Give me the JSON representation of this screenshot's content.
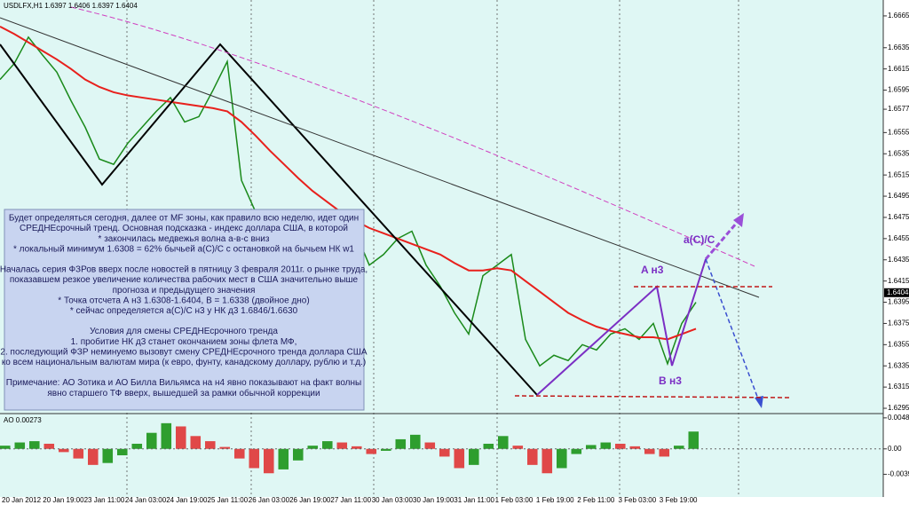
{
  "chart_data": [
    {
      "type": "line",
      "title": "USDLFX,H1  1.6397 1.6406 1.6397 1.6404",
      "x_labels": [
        "20 Jan 2012",
        "20 Jan 19:00",
        "23 Jan 11:00",
        "24 Jan 03:00",
        "24 Jan 19:00",
        "25 Jan 11:00",
        "26 Jan 03:00",
        "26 Jan 19:00",
        "27 Jan 11:00",
        "30 Jan 03:00",
        "30 Jan 19:00",
        "31 Jan 11:00",
        "1 Feb 03:00",
        "1 Feb 19:00",
        "2 Feb 11:00",
        "3 Feb 03:00",
        "3 Feb 19:00"
      ],
      "series": [
        {
          "name": "close",
          "color": "#1a8a1a",
          "values": [
            1.6605,
            1.662,
            1.6645,
            1.6628,
            1.6612,
            1.6585,
            1.656,
            1.653,
            1.6525,
            1.6545,
            1.656,
            1.6575,
            1.6588,
            1.6565,
            1.657,
            1.6595,
            1.6622,
            1.651,
            1.648,
            1.647,
            1.6455,
            1.6445,
            1.645,
            1.644,
            1.645,
            1.6462,
            1.643,
            1.644,
            1.6455,
            1.6462,
            1.643,
            1.641,
            1.6385,
            1.6365,
            1.642,
            1.643,
            1.644,
            1.636,
            1.6335,
            1.6345,
            1.634,
            1.6355,
            1.635,
            1.6365,
            1.637,
            1.636,
            1.6375,
            1.6337,
            1.6375,
            1.6395
          ]
        },
        {
          "name": "ma",
          "color": "#e8201c",
          "values": [
            1.6655,
            1.6648,
            1.664,
            1.6632,
            1.6624,
            1.6615,
            1.6605,
            1.6598,
            1.6593,
            1.659,
            1.6588,
            1.6586,
            1.6584,
            1.6582,
            1.658,
            1.6578,
            1.6575,
            1.6565,
            1.6552,
            1.6538,
            1.6525,
            1.6512,
            1.65,
            1.649,
            1.648,
            1.6472,
            1.6465,
            1.646,
            1.6455,
            1.645,
            1.6445,
            1.644,
            1.6432,
            1.6425,
            1.6425,
            1.6427,
            1.6425,
            1.6415,
            1.6405,
            1.6395,
            1.6385,
            1.6378,
            1.6372,
            1.6368,
            1.6365,
            1.6362,
            1.6362,
            1.636,
            1.6365,
            1.637
          ]
        }
      ],
      "ylim": [
        1.629,
        1.668
      ],
      "yticks": [
        1.6665,
        1.6635,
        1.6615,
        1.6595,
        1.6577,
        1.6555,
        1.6535,
        1.6515,
        1.6495,
        1.6475,
        1.6455,
        1.6435,
        1.6415,
        1.6395,
        1.6375,
        1.6355,
        1.6335,
        1.6315,
        1.6295
      ],
      "current": 1.6404,
      "wave_labels": [
        "A н3",
        "B н3",
        "a(C)/C"
      ],
      "annotations": [
        [
          "Будет определяться сегодня, далее от МF зоны, как правило всю неделю, идет один",
          "СРЕДНЕсрочный тренд. Основная подсказка - индекс доллара США, в которой",
          "* закончилась медвежья волна а-в-с вниз",
          "* локальный минимум 1.6308 = 62% бычьей а(С)/С с остановкой на бычьем НК w1"
        ],
        [
          "Началась серия ФЗРов вверх после новостей в пятницу 3 февраля 2011г. о рынке труда,",
          "показавшем резкое увеличение количества рабочих мест в США значительно выше",
          "прогноза и предыдущего значения",
          "* Точка отсчета А н3 1.6308-1.6404, В = 1.6338 (двойное дно)",
          "* сейчас определяется а(С)/С н3 у НК д3 1.6846/1.6630"
        ],
        [
          "Условия для смены СРЕДНЕсрочного тренда",
          "1. пробитие НК д3 станет окончанием зоны флета МФ,",
          "2. последующий ФЗР неминуемо вызовут смену СРЕДНЕсрочного тренда доллара США",
          "ко всем национальным валютам мира (к евро, фунту, канадскому доллару, рублю и т.д.)"
        ],
        [
          "Примечание: АО Зотика и АО Билла Вильямса на н4 явно показывают на факт волны",
          "явно старшего ТФ вверх, вышедшей за рамки обычной коррекции"
        ]
      ]
    },
    {
      "type": "bar",
      "title": "AO 0.00273",
      "up_color": "#2e9e2e",
      "down_color": "#e04848",
      "values": [
        0.0005,
        0.001,
        0.0012,
        0.0008,
        -0.0005,
        -0.0015,
        -0.0025,
        -0.0022,
        -0.001,
        0.0008,
        0.0025,
        0.004,
        0.0035,
        0.002,
        0.0012,
        0.0003,
        -0.0015,
        -0.003,
        -0.0038,
        -0.0032,
        -0.0018,
        0.0005,
        0.0012,
        0.001,
        0.0004,
        -0.0008,
        -0.0003,
        0.0015,
        0.0022,
        0.001,
        -0.0012,
        -0.003,
        -0.0025,
        0.0008,
        0.002,
        0.0005,
        -0.0025,
        -0.0038,
        -0.003,
        -0.0008,
        0.0006,
        0.001,
        0.0008,
        0.0004,
        -0.0008,
        -0.0012,
        0.0005,
        0.0027
      ],
      "ylim": [
        -0.0075,
        0.0055
      ],
      "yticks": [
        0.00483,
        {
          "value": 0,
          "label": "0.00"
        },
        -0.00396
      ]
    }
  ]
}
